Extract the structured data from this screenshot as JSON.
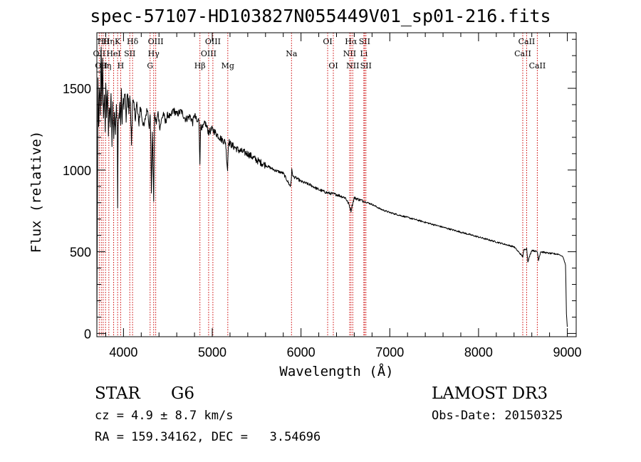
{
  "chart_data": {
    "type": "line",
    "title": "spec-57107-HD103827N055449V01_sp01-216.fits",
    "xlabel": "Wavelength (Å)",
    "ylabel": "Flux (relative)",
    "xlim": [
      3700,
      9100
    ],
    "ylim": [
      -20,
      1840
    ],
    "xticks": [
      4000,
      5000,
      6000,
      7000,
      8000,
      9000
    ],
    "yticks": [
      0,
      500,
      1000,
      1500
    ],
    "grid": false,
    "series": [
      {
        "name": "flux",
        "x": [
          3700,
          3705,
          3712,
          3720,
          3730,
          3740,
          3748,
          3755,
          3765,
          3775,
          3785,
          3795,
          3800,
          3810,
          3820,
          3830,
          3840,
          3850,
          3860,
          3870,
          3880,
          3890,
          3900,
          3910,
          3920,
          3930,
          3934,
          3940,
          3950,
          3960,
          3968,
          3975,
          3985,
          3995,
          4005,
          4015,
          4030,
          4045,
          4060,
          4075,
          4090,
          4101,
          4110,
          4130,
          4150,
          4170,
          4190,
          4210,
          4230,
          4250,
          4270,
          4290,
          4300,
          4308,
          4315,
          4325,
          4340,
          4350,
          4370,
          4390,
          4410,
          4430,
          4450,
          4470,
          4500,
          4530,
          4560,
          4600,
          4650,
          4700,
          4750,
          4780,
          4800,
          4830,
          4850,
          4861,
          4870,
          4890,
          4920,
          4960,
          5000,
          5050,
          5100,
          5150,
          5172,
          5183,
          5200,
          5250,
          5300,
          5400,
          5500,
          5600,
          5700,
          5800,
          5880,
          5890,
          5896,
          5910,
          5950,
          6000,
          6100,
          6200,
          6300,
          6400,
          6500,
          6540,
          6563,
          6575,
          6600,
          6700,
          6800,
          6900,
          7000,
          7200,
          7400,
          7600,
          7800,
          8000,
          8200,
          8400,
          8498,
          8510,
          8542,
          8555,
          8600,
          8662,
          8675,
          8700,
          8800,
          8900,
          8950,
          8980,
          8990,
          9000
        ],
        "y": [
          0,
          680,
          1520,
          1250,
          1480,
          1350,
          1780,
          1420,
          1650,
          1320,
          1480,
          1200,
          1540,
          1350,
          1500,
          1210,
          1380,
          1280,
          1450,
          1180,
          1400,
          1200,
          1360,
          1250,
          1420,
          1280,
          740,
          1250,
          1330,
          1420,
          1260,
          1500,
          1280,
          1450,
          1380,
          1480,
          1320,
          1460,
          1380,
          1440,
          1160,
          1420,
          1400,
          1330,
          1400,
          1280,
          1390,
          1310,
          1260,
          1330,
          1380,
          1270,
          1330,
          1150,
          860,
          1250,
          820,
          1330,
          1290,
          1350,
          1260,
          1310,
          1350,
          1290,
          1340,
          1320,
          1370,
          1340,
          1360,
          1310,
          1330,
          1290,
          1340,
          1290,
          1310,
          1050,
          1280,
          1250,
          1290,
          1230,
          1250,
          1220,
          1190,
          1170,
          1000,
          1180,
          1160,
          1140,
          1120,
          1100,
          1060,
          1030,
          1000,
          980,
          900,
          940,
          1000,
          960,
          950,
          930,
          910,
          880,
          860,
          850,
          830,
          790,
          750,
          780,
          830,
          810,
          790,
          760,
          740,
          710,
          680,
          650,
          620,
          590,
          560,
          530,
          470,
          510,
          520,
          440,
          510,
          500,
          450,
          500,
          490,
          485,
          470,
          420,
          120,
          40
        ]
      }
    ],
    "lines": [
      {
        "wavelength": 3727,
        "label": "OII",
        "row": 2
      },
      {
        "wavelength": 3750,
        "label": "OII",
        "row": 3
      },
      {
        "wavelength": 3771,
        "label": "Hθ",
        "row": 1
      },
      {
        "wavelength": 3798,
        "label": "Hη",
        "row": 3
      },
      {
        "wavelength": 3835,
        "label": "Hη",
        "row": 1
      },
      {
        "wavelength": 3889,
        "label": "HeI",
        "row": 2
      },
      {
        "wavelength": 3934,
        "label": "K",
        "row": 1
      },
      {
        "wavelength": 3968,
        "label": "H",
        "row": 3
      },
      {
        "wavelength": 4071,
        "label": "SII",
        "row": 2
      },
      {
        "wavelength": 4102,
        "label": "Hδ",
        "row": 1
      },
      {
        "wavelength": 4300,
        "label": "G",
        "row": 3
      },
      {
        "wavelength": 4340,
        "label": "Hγ",
        "row": 2
      },
      {
        "wavelength": 4363,
        "label": "OIII",
        "row": 1
      },
      {
        "wavelength": 4861,
        "label": "Hβ",
        "row": 3
      },
      {
        "wavelength": 4959,
        "label": "OIII",
        "row": 2
      },
      {
        "wavelength": 5007,
        "label": "OIII",
        "row": 1
      },
      {
        "wavelength": 5175,
        "label": "Mg",
        "row": 3
      },
      {
        "wavelength": 5893,
        "label": "Na",
        "row": 2
      },
      {
        "wavelength": 6300,
        "label": "OI",
        "row": 1
      },
      {
        "wavelength": 6364,
        "label": "OI",
        "row": 3
      },
      {
        "wavelength": 6548,
        "label": "NII",
        "row": 2
      },
      {
        "wavelength": 6563,
        "label": "Hα",
        "row": 1
      },
      {
        "wavelength": 6583,
        "label": "NII",
        "row": 3
      },
      {
        "wavelength": 6708,
        "label": "Li",
        "row": 2
      },
      {
        "wavelength": 6716,
        "label": "SII",
        "row": 1
      },
      {
        "wavelength": 6731,
        "label": "SII",
        "row": 3
      },
      {
        "wavelength": 8498,
        "label": "CaII",
        "row": 2
      },
      {
        "wavelength": 8542,
        "label": "CaII",
        "row": 1
      },
      {
        "wavelength": 8662,
        "label": "CaII",
        "row": 3
      }
    ]
  },
  "info": {
    "class": "STAR",
    "subclass": "G6",
    "survey": "LAMOST DR3",
    "cz": "cz = 4.9 ± 8.7 km/s",
    "obs_date": "Obs-Date: 20150325",
    "radec": "RA = 159.34162, DEC =   3.54696"
  },
  "colors": {
    "spectrum": "#000000",
    "line_marker": "#cc0000",
    "axis": "#000000"
  }
}
